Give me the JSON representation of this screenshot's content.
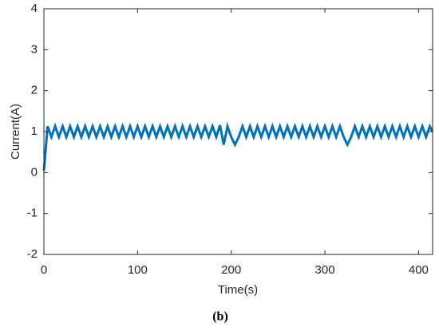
{
  "chart_data": {
    "type": "line",
    "xlabel": "Time(s)",
    "ylabel": "Current(A)",
    "caption": "(b)",
    "x": [
      0,
      4,
      8,
      12,
      16,
      20,
      24,
      28,
      32,
      36,
      40,
      44,
      48,
      52,
      56,
      60,
      64,
      68,
      72,
      76,
      80,
      84,
      88,
      92,
      96,
      100,
      104,
      108,
      112,
      116,
      120,
      124,
      128,
      132,
      136,
      140,
      144,
      148,
      152,
      156,
      160,
      164,
      168,
      172,
      176,
      180,
      184,
      188,
      192,
      196,
      200,
      204,
      208,
      212,
      216,
      220,
      224,
      228,
      232,
      236,
      240,
      244,
      248,
      252,
      256,
      260,
      264,
      268,
      272,
      276,
      280,
      284,
      288,
      292,
      296,
      300,
      304,
      308,
      312,
      316,
      320,
      324,
      328,
      332,
      336,
      340,
      344,
      348,
      352,
      356,
      360,
      364,
      368,
      372,
      376,
      380,
      384,
      388,
      392,
      396,
      400,
      404,
      408,
      412,
      415
    ],
    "series": [
      {
        "name": "Current",
        "color": "#0072bd",
        "values": [
          0.05,
          1.13,
          0.87,
          1.13,
          0.87,
          1.13,
          0.87,
          1.13,
          0.87,
          1.13,
          0.87,
          1.13,
          0.87,
          1.13,
          0.87,
          1.13,
          0.87,
          1.13,
          0.87,
          1.13,
          0.87,
          1.13,
          0.87,
          1.13,
          0.87,
          1.13,
          0.87,
          1.13,
          0.87,
          1.13,
          0.87,
          1.13,
          0.87,
          1.13,
          0.87,
          1.13,
          0.87,
          1.13,
          0.87,
          1.13,
          0.87,
          1.13,
          0.87,
          1.13,
          0.87,
          1.13,
          0.87,
          1.16,
          0.68,
          1.13,
          0.87,
          0.68,
          0.87,
          1.13,
          0.87,
          1.13,
          0.87,
          1.13,
          0.87,
          1.13,
          0.87,
          1.13,
          0.87,
          1.13,
          0.87,
          1.13,
          0.87,
          1.13,
          0.87,
          1.13,
          0.87,
          1.13,
          0.87,
          1.13,
          0.87,
          1.13,
          0.87,
          1.13,
          0.87,
          1.13,
          0.87,
          0.68,
          0.87,
          1.13,
          0.87,
          1.13,
          0.87,
          1.13,
          0.87,
          1.13,
          0.87,
          1.13,
          0.87,
          1.13,
          0.87,
          1.13,
          0.87,
          1.13,
          0.87,
          1.13,
          0.87,
          1.13,
          0.87,
          1.13,
          1.0
        ]
      }
    ],
    "xlim": [
      0,
      415
    ],
    "ylim": [
      -2,
      4
    ],
    "xticks": [
      0,
      100,
      200,
      300,
      400
    ],
    "yticks": [
      -2,
      -1,
      0,
      1,
      2,
      3,
      4
    ]
  }
}
